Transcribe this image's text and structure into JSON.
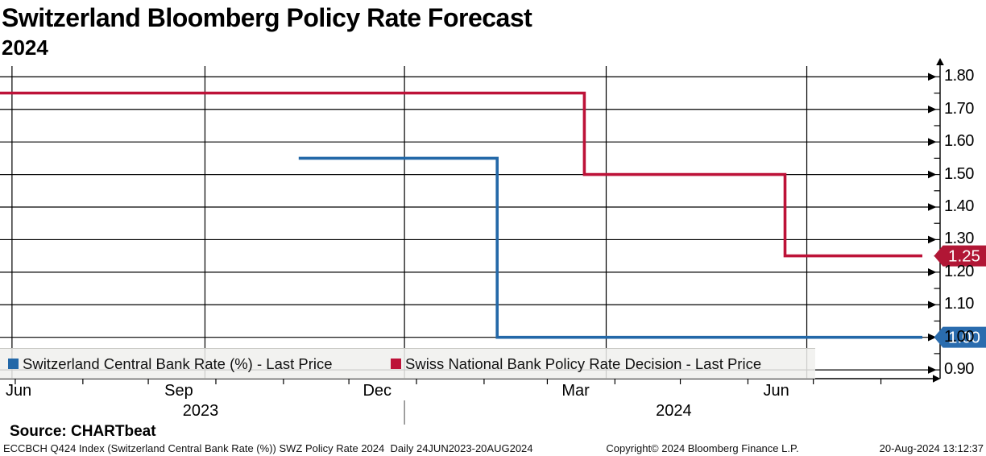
{
  "header": {
    "title": "Switzerland Bloomberg Policy Rate Forecast",
    "subtitle": "2024"
  },
  "source": {
    "label": "Source: CHARTbeat"
  },
  "footer": {
    "ticker_info": "ECCBCH Q424 Index (Switzerland Central Bank Rate (%)) SWZ Policy Rate 2024  Daily 24JUN2023-20AUG2024",
    "copyright": "Copyright© 2024 Bloomberg Finance L.P.",
    "datetime": "20-Aug-2024 13:12:37"
  },
  "chart_data": {
    "type": "line",
    "step": true,
    "title": "Switzerland Bloomberg Policy Rate Forecast",
    "subtitle": "2024",
    "x_unit": "days since 24JUN2023",
    "xlim": [
      0,
      423
    ],
    "ylim": [
      0.873,
      1.833
    ],
    "grid": true,
    "legend_position": "bottom-inside",
    "y_axis": {
      "side": "right",
      "major_tick_labels": [
        "1.80",
        "1.70",
        "1.60",
        "1.50",
        "1.40",
        "1.30",
        "1.20",
        "1.10",
        "1.00",
        "0.90"
      ],
      "minor_step": 0.05
    },
    "x_axis": {
      "month_tick_days": [
        7,
        38,
        68,
        99,
        130,
        160,
        191,
        222,
        251,
        282,
        312,
        343,
        373,
        404
      ],
      "gridline_days": [
        5.5,
        94,
        185.5,
        278,
        370
      ],
      "month_labels": [
        {
          "label": "Jun",
          "day": 7
        },
        {
          "label": "Sep",
          "day": 82
        },
        {
          "label": "Dec",
          "day": 173
        },
        {
          "label": "Mar",
          "day": 264
        },
        {
          "label": "Jun",
          "day": 356
        }
      ],
      "year_labels": [
        {
          "label": "2023",
          "day": 92
        },
        {
          "label": "2024",
          "day": 309
        }
      ],
      "year_separator_day": 185.5
    },
    "series": [
      {
        "name": "Switzerland Central Bank Rate (%) - Last Price",
        "color": "#2368a8",
        "points": [
          [
            137,
            1.55
          ],
          [
            228,
            1.55
          ],
          [
            228,
            1.0
          ],
          [
            423,
            1.0
          ]
        ],
        "last_price": "1.00",
        "badge_value": 1.0,
        "badge_color": "#2a6cae"
      },
      {
        "name": "Swiss National Bank Policy Rate Decision - Last Price",
        "color": "#bd1238",
        "points": [
          [
            0,
            1.75
          ],
          [
            268,
            1.75
          ],
          [
            268,
            1.5
          ],
          [
            360,
            1.5
          ],
          [
            360,
            1.25
          ],
          [
            423,
            1.25
          ]
        ],
        "last_price": "1.25",
        "badge_value": 1.25,
        "badge_color": "#b11635"
      }
    ]
  }
}
